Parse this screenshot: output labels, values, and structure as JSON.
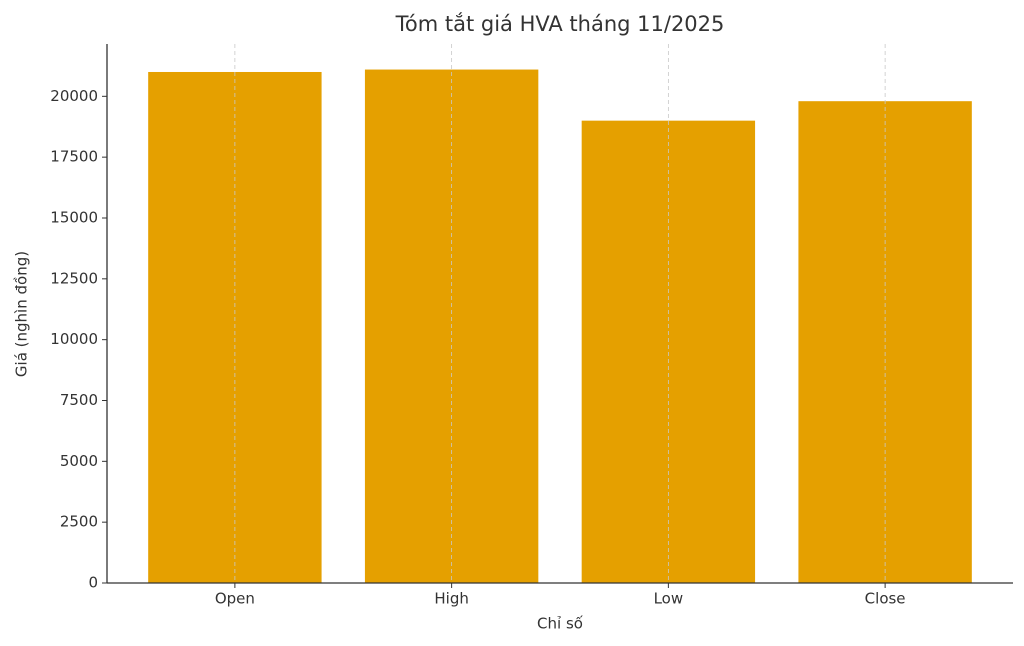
{
  "chart_data": {
    "type": "bar",
    "title": "Tóm tắt giá HVA tháng 11/2025",
    "x_label": "Chỉ số",
    "y_label": "Giá (nghìn đồng)",
    "categories": [
      "Open",
      "High",
      "Low",
      "Close"
    ],
    "values": [
      21000,
      21100,
      19000,
      19800
    ],
    "color": "#e5a000",
    "ylim": [
      0,
      22150
    ],
    "yticks": [
      0,
      2500,
      5000,
      7500,
      10000,
      12500,
      15000,
      17500,
      20000
    ],
    "grid": "x"
  }
}
